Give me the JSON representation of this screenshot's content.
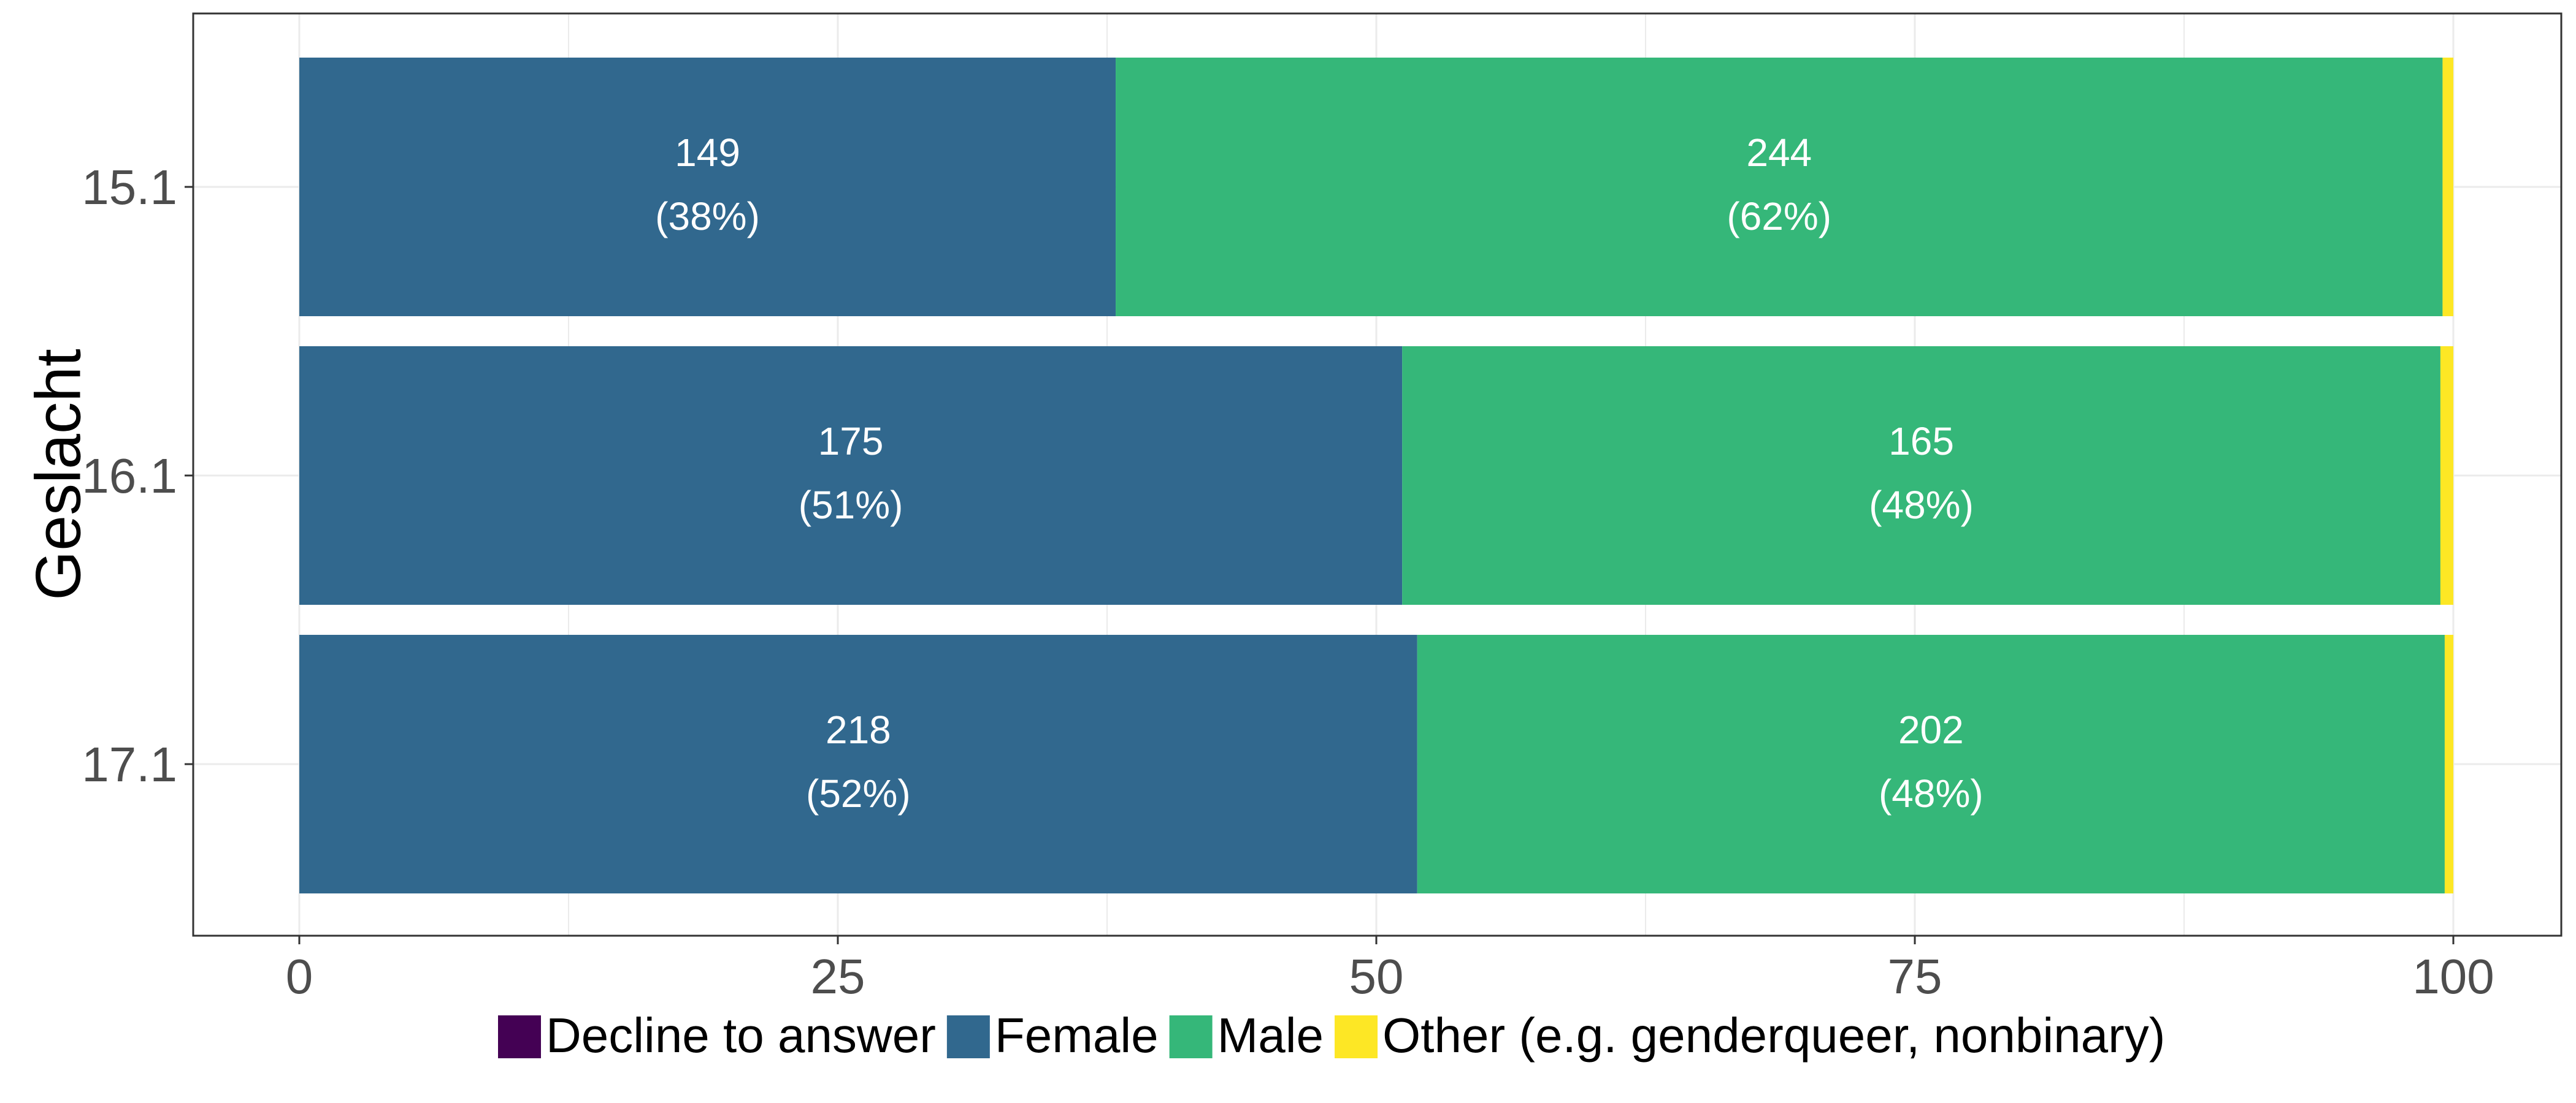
{
  "chart_data": {
    "type": "bar",
    "orientation": "horizontal",
    "stacked": true,
    "title": "",
    "xlabel": "",
    "ylabel": "Geslacht",
    "xlim": [
      0,
      100
    ],
    "x_ticks": [
      0,
      25,
      50,
      75,
      100
    ],
    "categories": [
      "15.1",
      "16.1",
      "17.1"
    ],
    "series": [
      {
        "name": "Decline to answer",
        "color": "#440154",
        "values": [
          0,
          0,
          0
        ],
        "counts": [
          null,
          null,
          null
        ],
        "labels": [
          "",
          "",
          ""
        ]
      },
      {
        "name": "Female",
        "color": "#31688E",
        "values": [
          37.9,
          51.2,
          51.9
        ],
        "counts": [
          149,
          175,
          218
        ],
        "labels": [
          "(38%)",
          "(51%)",
          "(52%)"
        ]
      },
      {
        "name": "Male",
        "color": "#35B779",
        "values": [
          61.6,
          48.2,
          47.7
        ],
        "counts": [
          244,
          165,
          202
        ],
        "labels": [
          "(62%)",
          "(48%)",
          "(48%)"
        ]
      },
      {
        "name": "Other (e.g. genderqueer, nonbinary)",
        "color": "#FDE725",
        "values": [
          0.5,
          0.6,
          0.4
        ],
        "counts": [
          null,
          null,
          null
        ],
        "labels": [
          "",
          "",
          ""
        ]
      }
    ],
    "grid": true,
    "legend_position": "bottom",
    "panel_border_color": "#333333",
    "grid_color": "#ebebeb"
  }
}
